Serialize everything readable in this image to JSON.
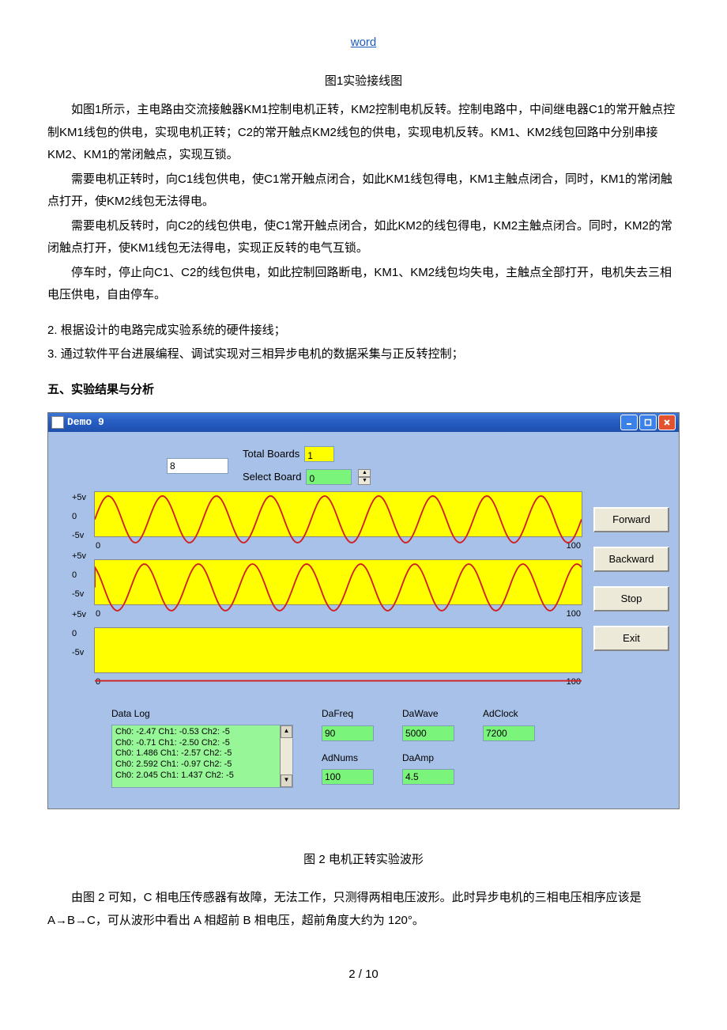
{
  "header": "word",
  "fig1_caption": "图1实验接线图",
  "p1": "如图1所示，主电路由交流接触器KM1控制电机正转，KM2控制电机反转。控制电路中，中间继电器C1的常开触点控制KM1线包的供电，实现电机正转；C2的常开触点KM2线包的供电，实现电机反转。KM1、KM2线包回路中分别串接KM2、KM1的常闭触点，实现互锁。",
  "p2": "需要电机正转时，向C1线包供电，使C1常开触点闭合，如此KM1线包得电，KM1主触点闭合，同时，KM1的常闭触点打开，使KM2线包无法得电。",
  "p3": "需要电机反转时，向C2的线包供电，使C1常开触点闭合，如此KM2的线包得电，KM2主触点闭合。同时，KM2的常闭触点打开，使KM1线包无法得电，实现正反转的电气互锁。",
  "p4": "停车时，停止向C1、C2的线包供电，如此控制回路断电，KM1、KM2线包均失电，主触点全部打开，电机失去三相电压供电，自由停车。",
  "li2": "2. 根据设计的电路完成实验系统的硬件接线；",
  "li3": "3. 通过软件平台进展编程、调试实现对三相异步电机的数据采集与正反转控制；",
  "sec5": "五、实验结果与分析",
  "win": {
    "title": "Demo 9",
    "top_value": "8",
    "total_boards_label": "Total Boards",
    "total_boards_value": "1",
    "select_board_label": "Select Board",
    "select_board_value": "0",
    "axis": {
      "pos": "+5v",
      "zero": "0",
      "neg": "-5v"
    },
    "xscale": {
      "min": "0",
      "max": "100"
    },
    "buttons": {
      "forward": "Forward",
      "backward": "Backward",
      "stop": "Stop",
      "exit": "Exit"
    },
    "datalog_label": "Data Log",
    "datalog_lines": [
      "Ch0: -2.47 Ch1: -0.53 Ch2: -5",
      "Ch0: -0.71 Ch1: -2.50 Ch2: -5",
      "Ch0: 1.486 Ch1: -2.57 Ch2: -5",
      "Ch0: 2.592 Ch1: -0.97 Ch2: -5",
      "Ch0: 2.045 Ch1: 1.437 Ch2: -5"
    ],
    "dafreq_label": "DaFreq",
    "dafreq": "90",
    "adnums_label": "AdNums",
    "adnums": "100",
    "dawave_label": "DaWave",
    "dawave": "5000",
    "daamp_label": "DaAmp",
    "daamp": "4.5",
    "adclock_label": "AdClock",
    "adclock": "7200",
    "wave_color": "#d02020",
    "bg_panel": "#a7c1e8",
    "chart_bg": "#ffff00"
  },
  "fig2_caption": "图 2 电机正转实验波形",
  "p5": "由图 2 可知，C 相电压传感器有故障，无法工作，只测得两相电压波形。此时异步电机的三相电压相序应该是 A→B→C，可从波形中看出 A 相超前 B 相电压，超前角度大约为 120°。",
  "page_footer": "2 / 10"
}
